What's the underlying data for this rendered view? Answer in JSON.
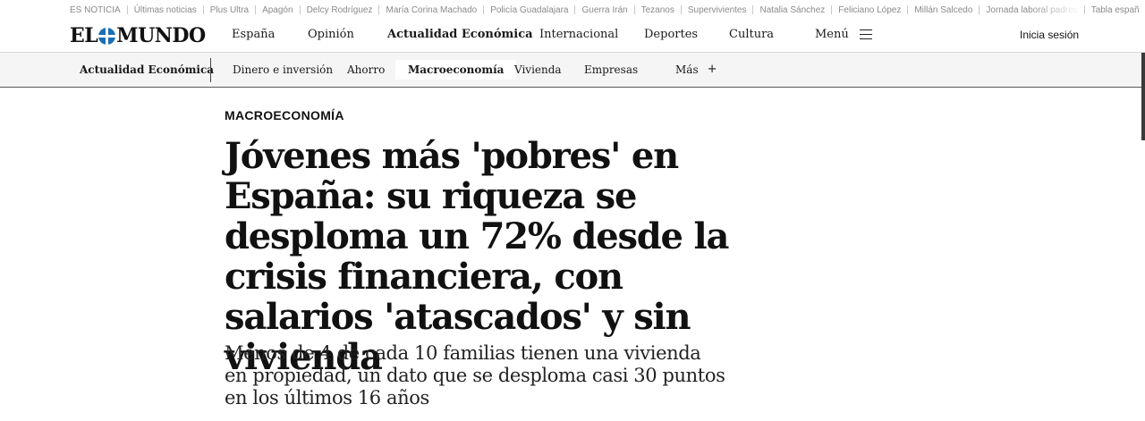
{
  "trending": {
    "items": [
      "ES NOTICIA",
      "Últimas noticias",
      "Plus Ultra",
      "Apagón",
      "Delcy Rodríguez",
      "María Corina Machado",
      "Policía Guadalajara",
      "Guerra Irán",
      "Tezanos",
      "Supervivientes",
      "Natalia Sánchez",
      "Feliciano López",
      "Millán Salcedo",
      "Jornada laboral padres",
      "Tabla españ"
    ]
  },
  "header": {
    "logo_left": "EL",
    "logo_right": "MUNDO",
    "nav": [
      {
        "label": "España"
      },
      {
        "label": "Opinión"
      },
      {
        "label": "Actualidad Económica"
      },
      {
        "label": "Internacional"
      },
      {
        "label": "Deportes"
      },
      {
        "label": "Cultura"
      }
    ],
    "menu_label": "Menú",
    "login_label": "Inicia sesión"
  },
  "section_nav": {
    "title": "Actualidad Económica",
    "items": [
      {
        "label": "Dinero e inversión"
      },
      {
        "label": "Ahorro"
      },
      {
        "label": "Macroeconomía"
      },
      {
        "label": "Vivienda"
      },
      {
        "label": "Empresas"
      }
    ],
    "more_label": "Más",
    "more_icon": "+"
  },
  "article": {
    "kicker": "MACROECONOMÍA",
    "headline": "Jóvenes más 'pobres' en España: su riqueza se desploma un 72% desde la crisis financiera, con salarios 'atascados' y sin vivienda",
    "dek": "Menos de 4 de cada 10 familias tienen una vivienda en propiedad, un dato que se desploma casi 30 puntos en los últimos 16 años"
  }
}
